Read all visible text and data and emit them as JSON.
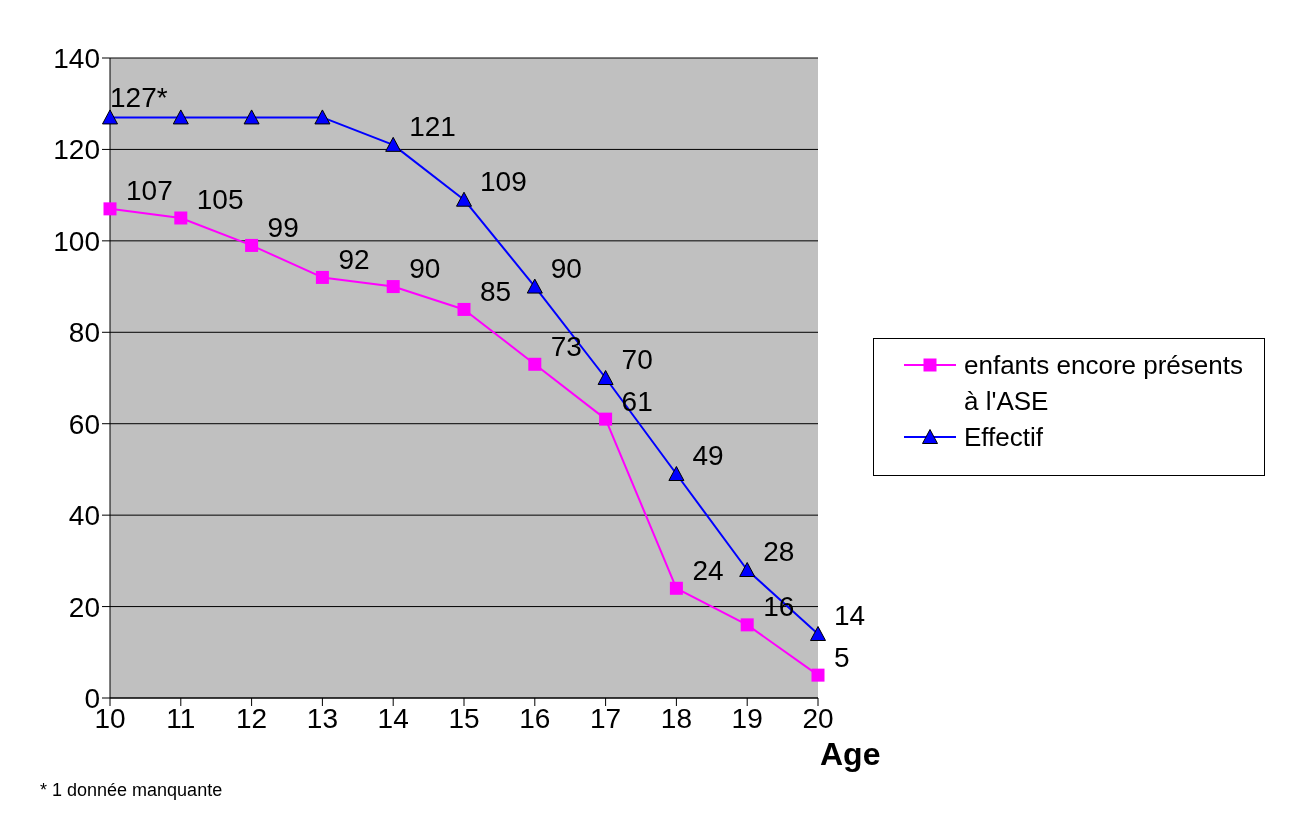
{
  "chart_data": {
    "type": "line",
    "xlabel": "Age",
    "categories": [
      "10",
      "11",
      "12",
      "13",
      "14",
      "15",
      "16",
      "17",
      "18",
      "19",
      "20"
    ],
    "series": [
      {
        "name": "enfants encore présents à l'ASE",
        "color": "#ff00ff",
        "marker": "square",
        "values": [
          107,
          105,
          99,
          92,
          90,
          85,
          73,
          61,
          24,
          16,
          5
        ],
        "value_labels": [
          "107",
          "105",
          "99",
          "92",
          "90",
          "85",
          "73",
          "61",
          "24",
          "16",
          "5"
        ]
      },
      {
        "name": "Effectif",
        "color": "#0000ff",
        "marker": "triangle",
        "values": [
          127,
          127,
          127,
          127,
          121,
          109,
          90,
          70,
          49,
          28,
          14
        ],
        "value_labels": [
          "127*",
          null,
          null,
          null,
          "121",
          "109",
          "90",
          "70",
          "49",
          "28",
          "14"
        ]
      }
    ],
    "ylim": [
      0,
      140
    ],
    "yticks": [
      0,
      20,
      40,
      60,
      80,
      100,
      120,
      140
    ],
    "grid": "y",
    "legend": "right",
    "line_style": "solid",
    "annotations": [
      "* 1 donnée manquante"
    ]
  }
}
